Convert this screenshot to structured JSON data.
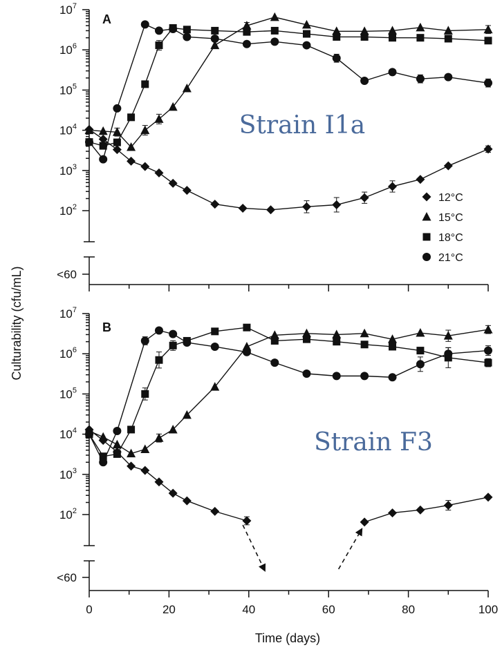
{
  "chart_data": {
    "type": "line",
    "ylabel": "Culturability (cfu/mL)",
    "xlabel": "Time (days)",
    "xlim": [
      0,
      100
    ],
    "x_ticks": [
      0,
      20,
      40,
      60,
      80,
      100
    ],
    "y_scale": "log",
    "ylim": [
      20,
      10000000
    ],
    "y_ticks": [
      {
        "base": "10",
        "exp": "7",
        "value": 10000000
      },
      {
        "base": "10",
        "exp": "6",
        "value": 1000000
      },
      {
        "base": "10",
        "exp": "5",
        "value": 100000
      },
      {
        "base": "10",
        "exp": "4",
        "value": 10000
      },
      {
        "base": "10",
        "exp": "3",
        "value": 1000
      },
      {
        "base": "10",
        "exp": "2",
        "value": 100
      }
    ],
    "below_label": "<60",
    "legend_position": "right, upper panel",
    "legend": [
      {
        "name": "12°C",
        "marker": "diamond"
      },
      {
        "name": "15°C",
        "marker": "triangle"
      },
      {
        "name": "18°C",
        "marker": "square"
      },
      {
        "name": "21°C",
        "marker": "circle"
      }
    ],
    "panels": [
      {
        "label": "A",
        "annotation": "Strain I1a",
        "series": [
          {
            "name": "12°C",
            "marker": "diamond",
            "x": [
              0,
              3.5,
              7,
              10.5,
              14,
              17.5,
              21,
              24.5,
              31.5,
              38.5,
              45.5,
              54.5,
              62,
              69,
              76,
              83,
              90,
              100
            ],
            "y": [
              10500,
              6000,
              3300,
              1700,
              1250,
              870,
              480,
              320,
              145,
              115,
              105,
              125,
              140,
              210,
              400,
              600,
              1300,
              3400
            ],
            "err": [
              0,
              0,
              0,
              0,
              0,
              0,
              0,
              0,
              0,
              0,
              0,
              0.15,
              0.18,
              0.14,
              0.14,
              0,
              0,
              0.08
            ]
          },
          {
            "name": "15°C",
            "marker": "triangle",
            "x": [
              0,
              3.5,
              7,
              10.5,
              14,
              17.5,
              21,
              24.5,
              31.5,
              39.5,
              46.5,
              54.5,
              62,
              69,
              76,
              83,
              90,
              100
            ],
            "y": [
              10000,
              9500,
              9000,
              3800,
              10000,
              19000,
              38000,
              110000,
              1300000,
              4000000,
              6500000,
              4200000,
              2900000,
              2900000,
              3000000,
              3600000,
              3000000,
              3200000
            ],
            "err": [
              0,
              0,
              0.1,
              0,
              0.12,
              0.12,
              0,
              0,
              0,
              0.08,
              0,
              0,
              0,
              0,
              0,
              0,
              0,
              0.1
            ]
          },
          {
            "name": "18°C",
            "marker": "square",
            "x": [
              0,
              3.5,
              7,
              10.5,
              14,
              17.5,
              21,
              24.5,
              31.5,
              39.5,
              46.5,
              54.5,
              62,
              69,
              76,
              83,
              90,
              100
            ],
            "y": [
              5100,
              4100,
              5000,
              21000,
              140000,
              1300000,
              3500000,
              3200000,
              3000000,
              2800000,
              3000000,
              2500000,
              2100000,
              2100000,
              2000000,
              2000000,
              1900000,
              1700000
            ],
            "err": [
              0,
              0,
              0,
              0,
              0,
              0.12,
              0,
              0,
              0,
              0,
              0,
              0,
              0,
              0,
              0,
              0,
              0,
              0
            ]
          },
          {
            "name": "21°C",
            "marker": "circle",
            "x": [
              0,
              3.5,
              7,
              14,
              17.5,
              21,
              24.5,
              31.5,
              39.5,
              46.5,
              54.5,
              62,
              69,
              76,
              83,
              90,
              100
            ],
            "y": [
              5100,
              1900,
              35000,
              4300000,
              3000000,
              3300000,
              2100000,
              1900000,
              1400000,
              1600000,
              1300000,
              620000,
              170000,
              280000,
              190000,
              210000,
              150000
            ],
            "err": [
              0,
              0,
              0,
              0,
              0,
              0,
              0,
              0,
              0,
              0,
              0,
              0.1,
              0,
              0,
              0.1,
              0,
              0.1
            ]
          }
        ]
      },
      {
        "label": "B",
        "annotation": "Strain F3",
        "series": [
          {
            "name": "12°C",
            "marker": "diamond",
            "x": [
              0,
              3.5,
              7,
              10.5,
              14,
              17.5,
              21,
              24.5,
              31.5,
              39.5,
              69,
              76,
              83,
              90,
              100
            ],
            "y": [
              13000,
              7000,
              3600,
              1600,
              1250,
              650,
              340,
              220,
              120,
              70,
              65,
              110,
              130,
              170,
              270
            ],
            "err": [
              0,
              0,
              0,
              0,
              0,
              0,
              0,
              0,
              0,
              0.1,
              0,
              0,
              0,
              0.12,
              0
            ]
          },
          {
            "name": "15°C",
            "marker": "triangle",
            "x": [
              0,
              3.5,
              7,
              10.5,
              14,
              17.5,
              21,
              24.5,
              31.5,
              39.5,
              46.5,
              54.5,
              62,
              69,
              76,
              83,
              90,
              100
            ],
            "y": [
              12000,
              8500,
              5500,
              3300,
              4200,
              8000,
              13000,
              30000,
              150000,
              1500000,
              2900000,
              3200000,
              3000000,
              3200000,
              2300000,
              3300000,
              2800000,
              4000000
            ],
            "err": [
              0,
              0,
              0,
              0,
              0,
              0.1,
              0,
              0,
              0,
              0,
              0,
              0,
              0,
              0,
              0,
              0,
              0.14,
              0.1
            ]
          },
          {
            "name": "18°C",
            "marker": "square",
            "x": [
              0,
              3.5,
              7,
              10.5,
              14,
              17.5,
              21,
              24.5,
              31.5,
              39.5,
              46.5,
              54.5,
              62,
              69,
              76,
              83,
              90,
              100
            ],
            "y": [
              10000,
              2800,
              3200,
              13000,
              100000,
              700000,
              1600000,
              2100000,
              3600000,
              4500000,
              2100000,
              2300000,
              2000000,
              1700000,
              1500000,
              1200000,
              800000,
              600000
            ],
            "err": [
              0,
              0,
              0,
              0,
              0.15,
              0.2,
              0.12,
              0,
              0,
              0.08,
              0,
              0,
              0,
              0,
              0,
              0,
              0.25,
              0.1
            ]
          },
          {
            "name": "21°C",
            "marker": "circle",
            "x": [
              0,
              3.5,
              7,
              14,
              17.5,
              21,
              24.5,
              31.5,
              39.5,
              46.5,
              54.5,
              62,
              69,
              76,
              83,
              90,
              100
            ],
            "y": [
              10000,
              2000,
              12000,
              2100000,
              3800000,
              3100000,
              1900000,
              1500000,
              1100000,
              600000,
              320000,
              280000,
              280000,
              260000,
              550000,
              1000000,
              1200000
            ],
            "err": [
              0,
              0,
              0,
              0.1,
              0,
              0,
              0,
              0,
              0,
              0,
              0,
              0,
              0,
              0,
              0.18,
              0.15,
              0.12
            ]
          }
        ],
        "arrows": [
          {
            "from_x": 38.5,
            "from_y": 55,
            "to_x": 44,
            "dir": "down"
          },
          {
            "from_x": 62.5,
            "to_x": 69,
            "to_y": 55,
            "dir": "up"
          }
        ]
      }
    ]
  }
}
